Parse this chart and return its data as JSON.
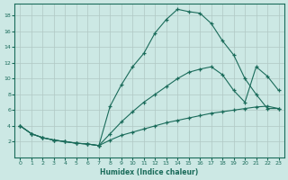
{
  "xlabel": "Humidex (Indice chaleur)",
  "background_color": "#cce8e4",
  "grid_color": "#b0c8c4",
  "line_color": "#1a6b5a",
  "xlim": [
    -0.5,
    23.5
  ],
  "ylim": [
    0,
    19.5
  ],
  "xticks": [
    0,
    1,
    2,
    3,
    4,
    5,
    6,
    7,
    8,
    9,
    10,
    11,
    12,
    13,
    14,
    15,
    16,
    17,
    18,
    19,
    20,
    21,
    22,
    23
  ],
  "yticks": [
    2,
    4,
    6,
    8,
    10,
    12,
    14,
    16,
    18
  ],
  "curve1_x": [
    0,
    1,
    2,
    3,
    4,
    5,
    6,
    7,
    8,
    9,
    10,
    11,
    12,
    13,
    14,
    15,
    16,
    17,
    18,
    19,
    20,
    21,
    22,
    23
  ],
  "curve1_y": [
    4,
    3,
    2.5,
    2.2,
    2.0,
    1.8,
    1.7,
    1.5,
    6.5,
    9.2,
    11.5,
    13.2,
    15.8,
    17.5,
    18.8,
    18.5,
    18.3,
    17.0,
    14.8,
    13.0,
    10.0,
    8.0,
    6.2,
    6.2
  ],
  "curve2_x": [
    0,
    1,
    2,
    3,
    4,
    5,
    6,
    7,
    8,
    9,
    10,
    11,
    12,
    13,
    14,
    15,
    16,
    17,
    18,
    19,
    20,
    21,
    22,
    23
  ],
  "curve2_y": [
    4,
    3,
    2.5,
    2.2,
    2.0,
    1.8,
    1.7,
    1.5,
    3.0,
    4.5,
    5.8,
    7.0,
    8.0,
    9.0,
    10.0,
    10.8,
    11.2,
    11.5,
    10.5,
    8.5,
    7.0,
    11.5,
    10.3,
    8.5
  ],
  "curve3_x": [
    0,
    1,
    2,
    3,
    4,
    5,
    6,
    7,
    8,
    9,
    10,
    11,
    12,
    13,
    14,
    15,
    16,
    17,
    18,
    19,
    20,
    21,
    22,
    23
  ],
  "curve3_y": [
    4,
    3,
    2.5,
    2.2,
    2.0,
    1.8,
    1.7,
    1.5,
    2.2,
    2.8,
    3.2,
    3.6,
    4.0,
    4.4,
    4.7,
    5.0,
    5.3,
    5.6,
    5.8,
    6.0,
    6.2,
    6.4,
    6.5,
    6.2
  ]
}
